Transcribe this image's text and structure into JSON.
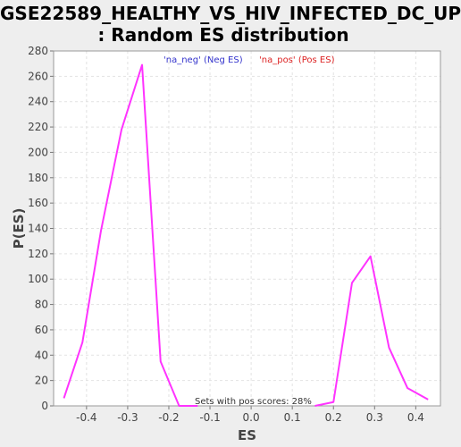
{
  "title_line1": "GSE22589_HEALTHY_VS_HIV_INFECTED_DC_UP",
  "title_line2": ": Random ES distribution",
  "colors": {
    "plot_bg": "#ffffff",
    "line": "#ff33ff",
    "neg_label": "#3333cc",
    "pos_label": "#dd2222"
  },
  "chart_data": {
    "type": "line",
    "title": "GSE22589_HEALTHY_VS_HIV_INFECTED_DC_UP : Random ES distribution",
    "xlabel": "ES",
    "ylabel": "P(ES)",
    "xlim": [
      -0.48,
      0.46
    ],
    "ylim": [
      0,
      280
    ],
    "grid": true,
    "x_ticks": [
      "-0.4",
      "-0.3",
      "-0.2",
      "-0.1",
      "0.0",
      "0.1",
      "0.2",
      "0.3",
      "0.4"
    ],
    "y_ticks": [
      "0",
      "20",
      "40",
      "60",
      "80",
      "100",
      "120",
      "140",
      "160",
      "180",
      "200",
      "220",
      "240",
      "260",
      "280"
    ],
    "legend": [
      {
        "name": "'na_neg' (Neg ES)",
        "color": "#3333cc"
      },
      {
        "name": "'na_pos' (Pos ES)",
        "color": "#dd2222"
      }
    ],
    "annotation": "Sets with pos scores: 28%",
    "series": [
      {
        "name": "'na_neg' (Neg ES)",
        "x": [
          -0.455,
          -0.41,
          -0.365,
          -0.315,
          -0.265,
          -0.22,
          -0.175,
          -0.13
        ],
        "y": [
          6,
          50,
          138,
          218,
          269,
          35,
          0,
          0
        ]
      },
      {
        "name": "'na_pos' (Pos ES)",
        "x": [
          0.155,
          0.2,
          0.245,
          0.29,
          0.335,
          0.38,
          0.43
        ],
        "y": [
          0,
          3,
          97,
          118,
          46,
          14,
          5
        ]
      }
    ]
  }
}
